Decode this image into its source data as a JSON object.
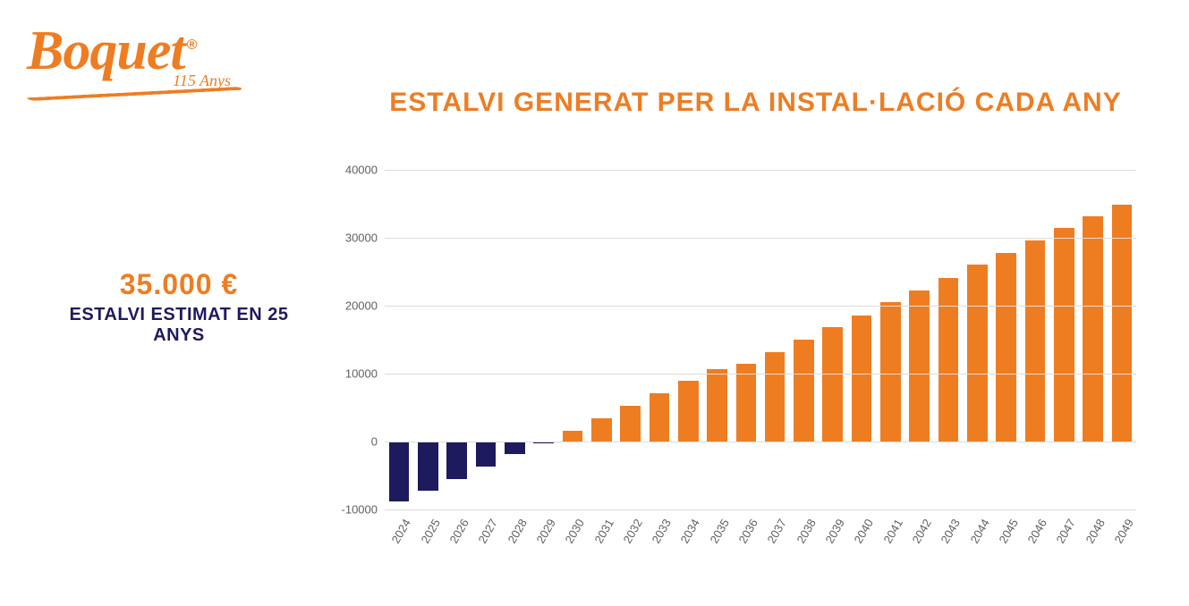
{
  "logo": {
    "brand": "Boquet",
    "registered": "®",
    "tagline": "115 Anys",
    "color": "#ee7d22"
  },
  "title": {
    "text": "ESTALVI GENERAT PER LA INSTAL·LACIÓ CADA ANY",
    "color": "#ee7d22",
    "fontsize": 30
  },
  "side": {
    "amount": "35.000 €",
    "amount_color": "#ee7d22",
    "caption": "ESTALVI ESTIMAT EN 25 ANYS",
    "caption_color": "#1e1a5e"
  },
  "chart": {
    "type": "bar",
    "background_color": "#ffffff",
    "grid_color": "#dcdcdc",
    "axis_label_color": "#606060",
    "axis_fontsize": 13,
    "ylim": [
      -10000,
      40000
    ],
    "ytick_step": 10000,
    "yticks": [
      -10000,
      0,
      10000,
      20000,
      30000,
      40000
    ],
    "bar_width": 0.7,
    "categories": [
      "2024",
      "2025",
      "2026",
      "2027",
      "2028",
      "2029",
      "2030",
      "2031",
      "2032",
      "2033",
      "2034",
      "2035",
      "2036",
      "2037",
      "2038",
      "2039",
      "2040",
      "2041",
      "2042",
      "2043",
      "2044",
      "2045",
      "2046",
      "2047",
      "2048",
      "2049"
    ],
    "values": [
      -8800,
      -7200,
      -5500,
      -3700,
      -1900,
      -200,
      1600,
      3400,
      5300,
      7100,
      8900,
      10700,
      11500,
      13200,
      15000,
      16800,
      18600,
      20500,
      22300,
      24100,
      26000,
      27800,
      29600,
      31400,
      33100,
      34900
    ],
    "bar_colors": [
      "#1e1a5e",
      "#1e1a5e",
      "#1e1a5e",
      "#1e1a5e",
      "#1e1a5e",
      "#1e1a5e",
      "#ee7d22",
      "#ee7d22",
      "#ee7d22",
      "#ee7d22",
      "#ee7d22",
      "#ee7d22",
      "#ee7d22",
      "#ee7d22",
      "#ee7d22",
      "#ee7d22",
      "#ee7d22",
      "#ee7d22",
      "#ee7d22",
      "#ee7d22",
      "#ee7d22",
      "#ee7d22",
      "#ee7d22",
      "#ee7d22",
      "#ee7d22",
      "#ee7d22"
    ],
    "xlabel_rotation_deg": -60
  }
}
